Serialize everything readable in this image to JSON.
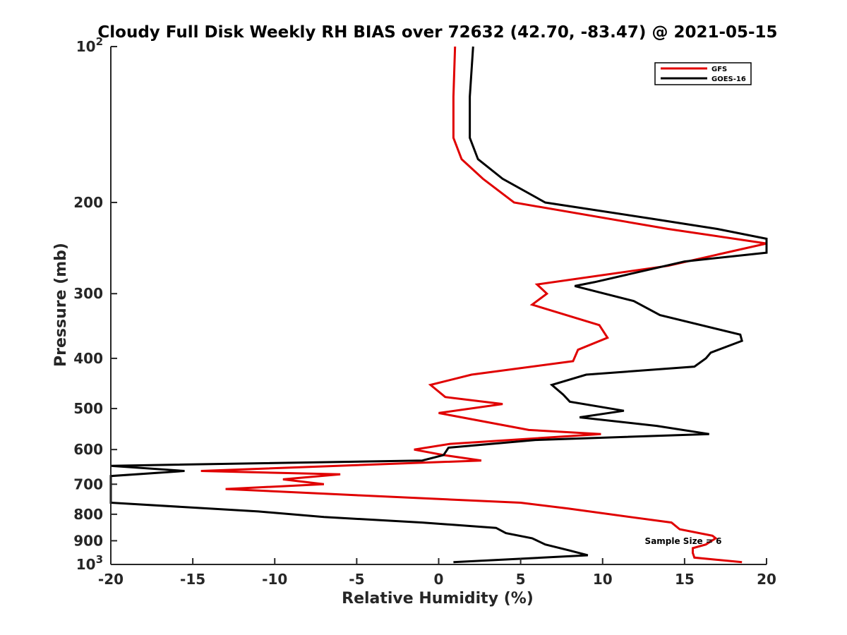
{
  "chart_data": {
    "type": "line",
    "title": "Cloudy Full Disk Weekly RH BIAS over 72632 (42.70, -83.47) @ 2021-05-15",
    "xlabel": "Relative Humidity (%)",
    "ylabel": "Pressure (mb)",
    "xlim": [
      -20,
      20
    ],
    "ylim": [
      100,
      1000
    ],
    "y_scale": "log",
    "y_reversed": true,
    "x_ticks": [
      -20,
      -15,
      -10,
      -5,
      0,
      5,
      10,
      15,
      20
    ],
    "x_tick_labels": [
      "-20",
      "-15",
      "-10",
      "-5",
      "0",
      "5",
      "10",
      "15",
      "20"
    ],
    "y_ticks": [
      100,
      200,
      300,
      400,
      500,
      600,
      700,
      800,
      900,
      1000
    ],
    "y_tick_labels": [
      {
        "base": "10",
        "exp": "2"
      },
      {
        "base": "200",
        "exp": ""
      },
      {
        "base": "300",
        "exp": ""
      },
      {
        "base": "400",
        "exp": ""
      },
      {
        "base": "500",
        "exp": ""
      },
      {
        "base": "600",
        "exp": ""
      },
      {
        "base": "700",
        "exp": ""
      },
      {
        "base": "800",
        "exp": ""
      },
      {
        "base": "900",
        "exp": ""
      },
      {
        "base": "10",
        "exp": "3"
      }
    ],
    "grid": false,
    "legend_position": "top-right",
    "annotation": "Sample Size = 6",
    "series": [
      {
        "name": "GFS",
        "color": "#e00000",
        "points": [
          [
            1.0,
            100
          ],
          [
            0.9,
            125
          ],
          [
            0.9,
            150
          ],
          [
            1.4,
            165
          ],
          [
            2.7,
            180
          ],
          [
            4.6,
            200
          ],
          [
            14.0,
            225
          ],
          [
            20.0,
            240
          ],
          [
            14.0,
            265
          ],
          [
            6.0,
            288
          ],
          [
            6.6,
            300
          ],
          [
            5.7,
            315
          ],
          [
            9.8,
            345
          ],
          [
            10.3,
            365
          ],
          [
            8.5,
            385
          ],
          [
            8.2,
            405
          ],
          [
            2.0,
            430
          ],
          [
            -0.5,
            450
          ],
          [
            0.4,
            475
          ],
          [
            3.9,
            490
          ],
          [
            0.0,
            510
          ],
          [
            5.5,
            550
          ],
          [
            9.9,
            560
          ],
          [
            0.7,
            585
          ],
          [
            -1.5,
            600
          ],
          [
            0.3,
            615
          ],
          [
            2.6,
            630
          ],
          [
            -14.5,
            660
          ],
          [
            -6.0,
            670
          ],
          [
            -9.5,
            685
          ],
          [
            -7.0,
            700
          ],
          [
            -13.0,
            715
          ],
          [
            -5.0,
            735
          ],
          [
            5.0,
            760
          ],
          [
            7.9,
            780
          ],
          [
            11.7,
            810
          ],
          [
            14.2,
            830
          ],
          [
            14.7,
            855
          ],
          [
            16.7,
            880
          ],
          [
            16.9,
            890
          ],
          [
            16.3,
            915
          ],
          [
            15.5,
            930
          ],
          [
            15.5,
            950
          ],
          [
            15.6,
            970
          ],
          [
            18.5,
            990
          ]
        ]
      },
      {
        "name": "GOES-16",
        "color": "#000000",
        "points": [
          [
            2.1,
            100
          ],
          [
            1.9,
            125
          ],
          [
            1.9,
            150
          ],
          [
            2.4,
            165
          ],
          [
            3.9,
            180
          ],
          [
            6.5,
            200
          ],
          [
            13.0,
            215
          ],
          [
            17.0,
            225
          ],
          [
            20.0,
            235
          ],
          [
            20.0,
            250
          ],
          [
            15.0,
            260
          ],
          [
            9.5,
            285
          ],
          [
            8.3,
            290
          ],
          [
            11.9,
            310
          ],
          [
            13.5,
            330
          ],
          [
            18.4,
            360
          ],
          [
            18.5,
            370
          ],
          [
            16.6,
            390
          ],
          [
            16.3,
            400
          ],
          [
            15.6,
            415
          ],
          [
            9.0,
            430
          ],
          [
            6.9,
            450
          ],
          [
            7.6,
            470
          ],
          [
            8.0,
            485
          ],
          [
            11.3,
            505
          ],
          [
            8.6,
            520
          ],
          [
            13.3,
            540
          ],
          [
            16.5,
            560
          ],
          [
            5.9,
            575
          ],
          [
            0.6,
            595
          ],
          [
            0.3,
            615
          ],
          [
            -1.0,
            630
          ],
          [
            -20.0,
            645
          ],
          [
            -15.5,
            660
          ],
          [
            -20.0,
            675
          ],
          [
            -20.0,
            760
          ],
          [
            -11.0,
            790
          ],
          [
            -7.0,
            810
          ],
          [
            -1.0,
            830
          ],
          [
            3.5,
            850
          ],
          [
            4.1,
            870
          ],
          [
            5.7,
            890
          ],
          [
            6.5,
            915
          ],
          [
            8.0,
            940
          ],
          [
            9.1,
            960
          ],
          [
            0.9,
            990
          ]
        ]
      }
    ]
  }
}
